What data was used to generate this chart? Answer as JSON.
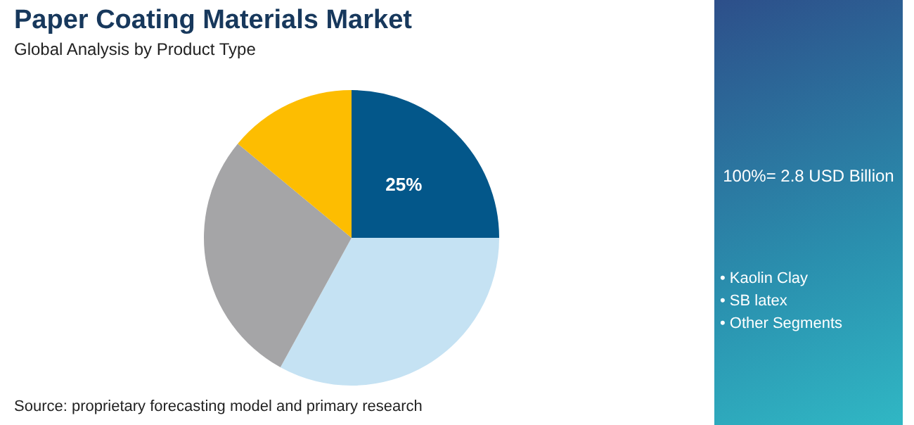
{
  "chart_data": {
    "type": "pie",
    "title": "Paper Coating Materials Market",
    "subtitle": "Global Analysis by Product Type",
    "categories": [
      null,
      null,
      null,
      null
    ],
    "values": [
      25,
      33,
      28,
      14
    ],
    "colors": [
      "#03578a",
      "#c5e2f3",
      "#a5a5a7",
      "#fdbd01"
    ],
    "value_labels": [
      "25%",
      null,
      null,
      null
    ],
    "annotations": [
      "100%= 2.8 USD Billion",
      "• Kaolin Clay",
      "• SB latex",
      "• Other Segments",
      "Source: proprietary forecasting model and primary research"
    ]
  }
}
